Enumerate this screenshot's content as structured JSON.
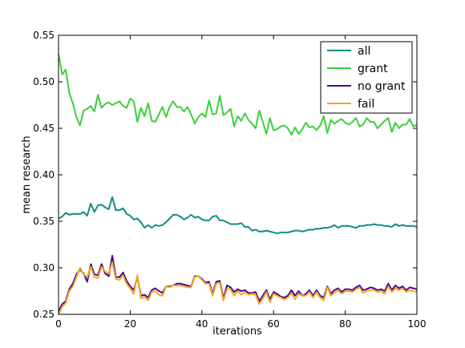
{
  "chart_data": {
    "type": "line",
    "title": "",
    "xlabel": "iterations",
    "ylabel": "mean research",
    "xlim": [
      0,
      100
    ],
    "ylim": [
      0.25,
      0.55
    ],
    "xticks": [
      0,
      20,
      40,
      60,
      80,
      100
    ],
    "xtick_labels": [
      "0",
      "20",
      "40",
      "60",
      "80",
      "100"
    ],
    "yticks": [
      0.25,
      0.3,
      0.35,
      0.4,
      0.45,
      0.5,
      0.55
    ],
    "ytick_labels": [
      "0.25",
      "0.30",
      "0.35",
      "0.40",
      "0.45",
      "0.50",
      "0.55"
    ],
    "grid": false,
    "legend_position": "top-right",
    "x": [
      0,
      1,
      2,
      3,
      4,
      5,
      6,
      7,
      8,
      9,
      10,
      11,
      12,
      13,
      14,
      15,
      16,
      17,
      18,
      19,
      20,
      21,
      22,
      23,
      24,
      25,
      26,
      27,
      28,
      29,
      30,
      31,
      32,
      33,
      34,
      35,
      36,
      37,
      38,
      39,
      40,
      41,
      42,
      43,
      44,
      45,
      46,
      47,
      48,
      49,
      50,
      51,
      52,
      53,
      54,
      55,
      56,
      57,
      58,
      59,
      60,
      61,
      62,
      63,
      64,
      65,
      66,
      67,
      68,
      69,
      70,
      71,
      72,
      73,
      74,
      75,
      76,
      77,
      78,
      79,
      80,
      81,
      82,
      83,
      84,
      85,
      86,
      87,
      88,
      89,
      90,
      91,
      92,
      93,
      94,
      95,
      96,
      97,
      98,
      99,
      100
    ],
    "series": [
      {
        "name": "all",
        "color": "#128c88",
        "values": [
          0.353,
          0.355,
          0.359,
          0.357,
          0.358,
          0.358,
          0.358,
          0.36,
          0.356,
          0.369,
          0.36,
          0.367,
          0.368,
          0.365,
          0.363,
          0.376,
          0.362,
          0.362,
          0.364,
          0.358,
          0.356,
          0.352,
          0.353,
          0.349,
          0.343,
          0.346,
          0.343,
          0.346,
          0.345,
          0.346,
          0.349,
          0.353,
          0.357,
          0.357,
          0.355,
          0.352,
          0.354,
          0.357,
          0.354,
          0.355,
          0.352,
          0.351,
          0.351,
          0.355,
          0.356,
          0.351,
          0.351,
          0.349,
          0.347,
          0.347,
          0.347,
          0.348,
          0.344,
          0.344,
          0.34,
          0.341,
          0.339,
          0.339,
          0.34,
          0.339,
          0.338,
          0.337,
          0.338,
          0.338,
          0.338,
          0.339,
          0.34,
          0.34,
          0.339,
          0.34,
          0.341,
          0.341,
          0.342,
          0.342,
          0.343,
          0.343,
          0.344,
          0.346,
          0.343,
          0.345,
          0.345,
          0.345,
          0.344,
          0.343,
          0.345,
          0.345,
          0.346,
          0.346,
          0.347,
          0.346,
          0.346,
          0.345,
          0.345,
          0.344,
          0.347,
          0.345,
          0.346,
          0.345,
          0.345,
          0.345,
          0.344
        ]
      },
      {
        "name": "grant",
        "color": "#3ccf3c",
        "values": [
          0.53,
          0.508,
          0.513,
          0.488,
          0.477,
          0.462,
          0.453,
          0.469,
          0.471,
          0.474,
          0.468,
          0.486,
          0.472,
          0.476,
          0.478,
          0.475,
          0.477,
          0.479,
          0.474,
          0.472,
          0.482,
          0.479,
          0.457,
          0.472,
          0.463,
          0.477,
          0.458,
          0.457,
          0.465,
          0.473,
          0.462,
          0.473,
          0.479,
          0.473,
          0.473,
          0.468,
          0.473,
          0.465,
          0.455,
          0.462,
          0.466,
          0.462,
          0.48,
          0.465,
          0.466,
          0.485,
          0.464,
          0.467,
          0.471,
          0.452,
          0.463,
          0.458,
          0.466,
          0.459,
          0.455,
          0.45,
          0.469,
          0.457,
          0.444,
          0.461,
          0.448,
          0.449,
          0.452,
          0.453,
          0.45,
          0.443,
          0.451,
          0.444,
          0.449,
          0.456,
          0.451,
          0.452,
          0.448,
          0.453,
          0.463,
          0.445,
          0.459,
          0.455,
          0.458,
          0.46,
          0.456,
          0.454,
          0.457,
          0.461,
          0.452,
          0.454,
          0.461,
          0.457,
          0.457,
          0.45,
          0.454,
          0.458,
          0.461,
          0.446,
          0.456,
          0.45,
          0.454,
          0.454,
          0.46,
          0.452,
          0.454
        ]
      },
      {
        "name": "no grant",
        "color": "#4b0a8a",
        "values": [
          0.253,
          0.261,
          0.264,
          0.277,
          0.283,
          0.293,
          0.298,
          0.294,
          0.285,
          0.304,
          0.293,
          0.292,
          0.304,
          0.294,
          0.291,
          0.313,
          0.29,
          0.29,
          0.295,
          0.286,
          0.28,
          0.276,
          0.29,
          0.27,
          0.271,
          0.268,
          0.276,
          0.278,
          0.275,
          0.273,
          0.28,
          0.28,
          0.281,
          0.283,
          0.283,
          0.282,
          0.281,
          0.28,
          0.291,
          0.291,
          0.288,
          0.284,
          0.285,
          0.272,
          0.285,
          0.286,
          0.267,
          0.281,
          0.279,
          0.274,
          0.277,
          0.275,
          0.276,
          0.273,
          0.273,
          0.274,
          0.264,
          0.27,
          0.276,
          0.266,
          0.274,
          0.272,
          0.269,
          0.268,
          0.27,
          0.276,
          0.27,
          0.275,
          0.27,
          0.272,
          0.276,
          0.27,
          0.276,
          0.27,
          0.268,
          0.28,
          0.272,
          0.276,
          0.278,
          0.274,
          0.277,
          0.277,
          0.276,
          0.279,
          0.281,
          0.276,
          0.277,
          0.279,
          0.278,
          0.276,
          0.277,
          0.275,
          0.283,
          0.276,
          0.281,
          0.278,
          0.28,
          0.276,
          0.279,
          0.278,
          0.277
        ]
      },
      {
        "name": "fail",
        "color": "#f5a623",
        "values": [
          0.25,
          0.258,
          0.262,
          0.275,
          0.28,
          0.29,
          0.3,
          0.293,
          0.29,
          0.301,
          0.29,
          0.289,
          0.301,
          0.296,
          0.294,
          0.306,
          0.288,
          0.287,
          0.292,
          0.283,
          0.278,
          0.272,
          0.292,
          0.267,
          0.269,
          0.265,
          0.274,
          0.275,
          0.271,
          0.27,
          0.28,
          0.279,
          0.281,
          0.281,
          0.281,
          0.28,
          0.279,
          0.279,
          0.29,
          0.291,
          0.287,
          0.283,
          0.283,
          0.27,
          0.283,
          0.284,
          0.265,
          0.277,
          0.277,
          0.27,
          0.275,
          0.271,
          0.274,
          0.271,
          0.272,
          0.271,
          0.261,
          0.267,
          0.274,
          0.263,
          0.272,
          0.27,
          0.268,
          0.266,
          0.268,
          0.273,
          0.266,
          0.272,
          0.27,
          0.27,
          0.274,
          0.268,
          0.274,
          0.268,
          0.265,
          0.279,
          0.27,
          0.273,
          0.276,
          0.272,
          0.275,
          0.275,
          0.274,
          0.277,
          0.279,
          0.273,
          0.275,
          0.276,
          0.276,
          0.274,
          0.275,
          0.272,
          0.28,
          0.274,
          0.278,
          0.276,
          0.278,
          0.274,
          0.276,
          0.275,
          0.274
        ]
      }
    ]
  }
}
